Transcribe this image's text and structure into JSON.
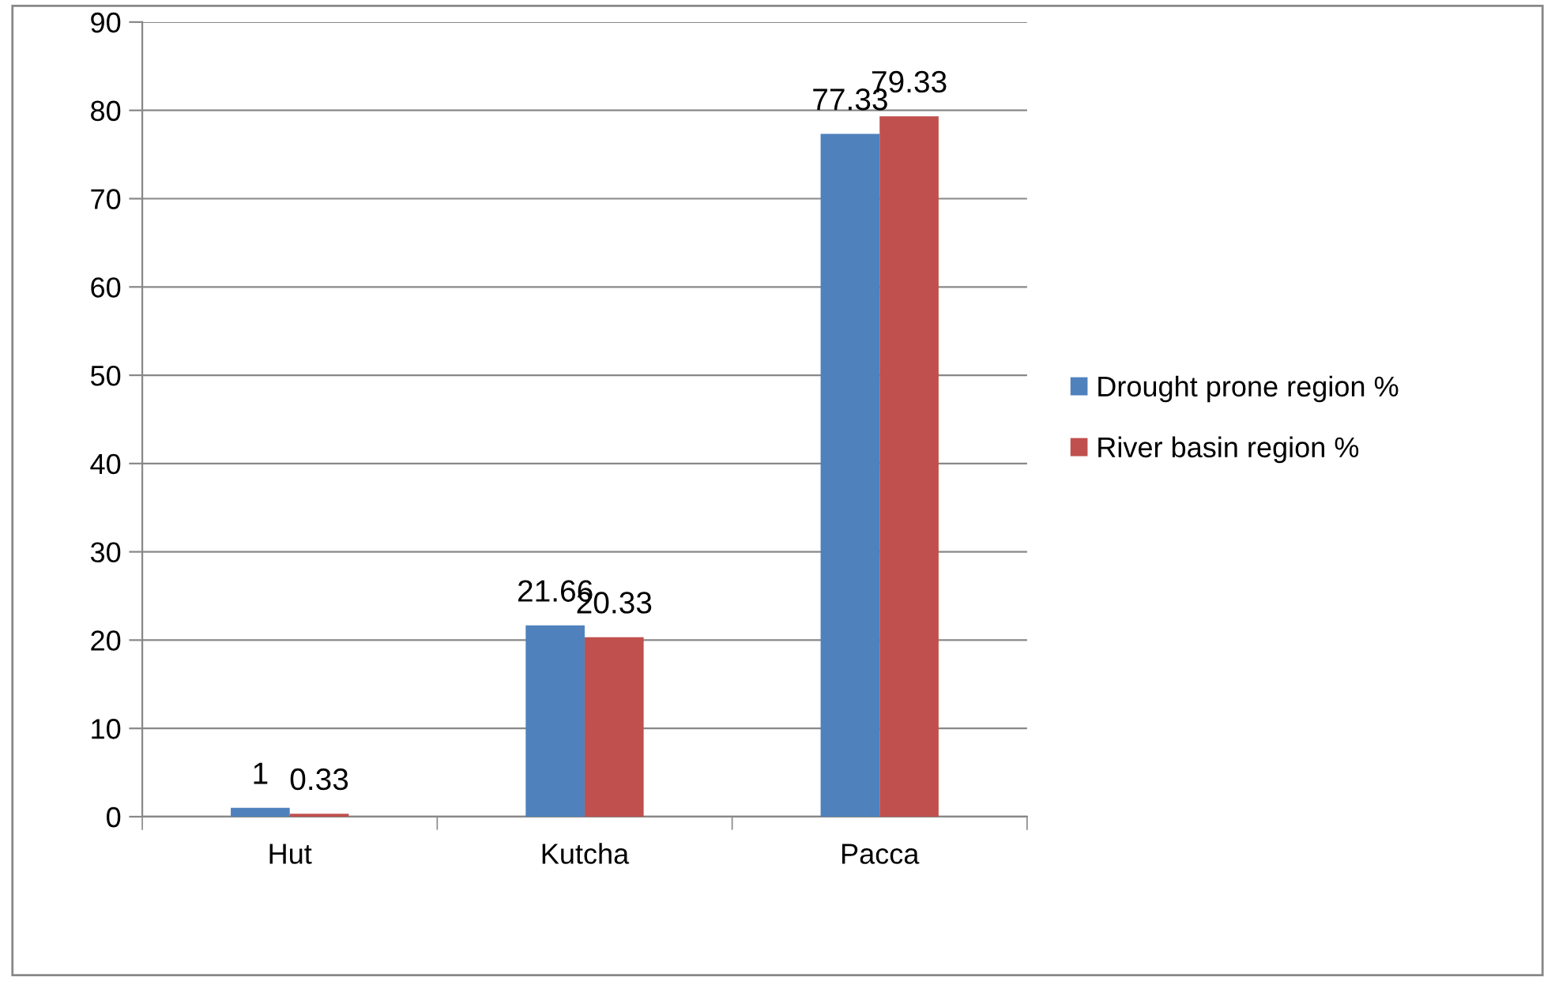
{
  "chart_data": {
    "type": "bar",
    "categories": [
      "Hut",
      "Kutcha",
      "Pacca"
    ],
    "series": [
      {
        "name": "Drought prone region %",
        "color": "#4f81bd",
        "values": [
          1,
          21.66,
          77.33
        ]
      },
      {
        "name": "River basin region %",
        "color": "#c0504d",
        "values": [
          0.33,
          20.33,
          79.33
        ]
      }
    ],
    "ylim": [
      0,
      90
    ],
    "yticks": [
      0,
      10,
      20,
      30,
      40,
      50,
      60,
      70,
      80,
      90
    ],
    "grid": "y",
    "legend": "right",
    "data_labels": true
  }
}
